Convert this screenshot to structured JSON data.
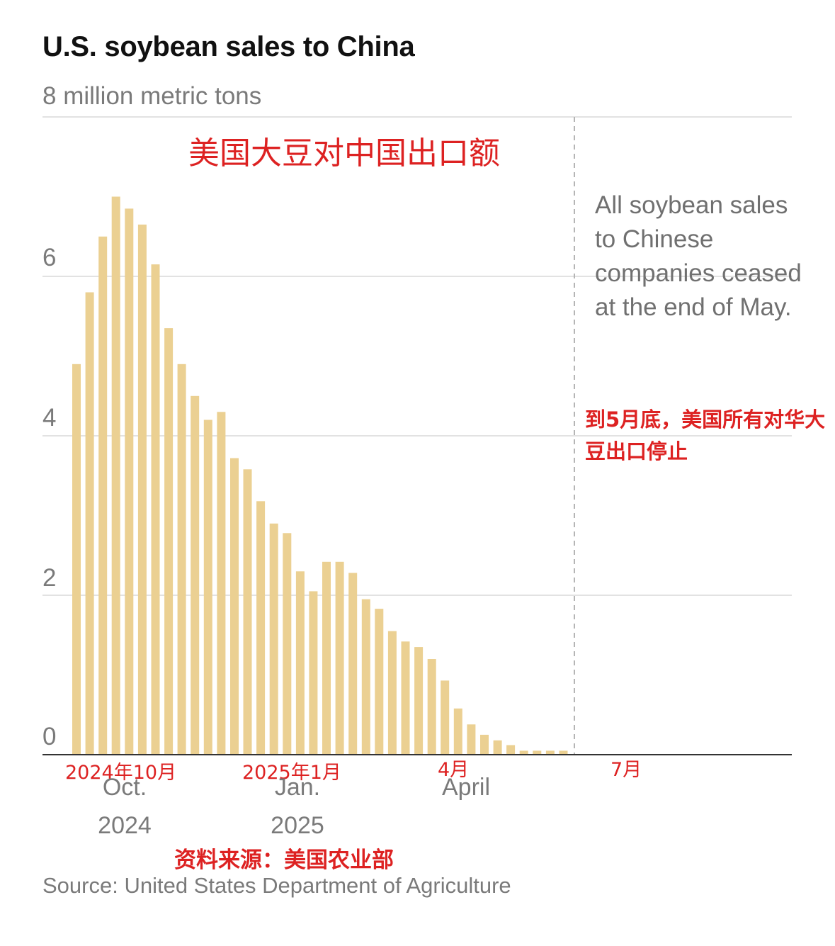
{
  "chart_data": {
    "type": "bar",
    "title": "U.S. soybean sales to China",
    "ylabel": "8 million metric tons",
    "annotation_zh_title": "美国大豆对中国出口额",
    "ylim": [
      0,
      8
    ],
    "yticks": [
      {
        "value": 6,
        "label": "6"
      },
      {
        "value": 4,
        "label": "4"
      },
      {
        "value": 2,
        "label": "2"
      },
      {
        "value": 0,
        "label": "0"
      }
    ],
    "x_ticks": [
      {
        "label": "Oct.",
        "sublabel": "2024",
        "zh": "2024年10月"
      },
      {
        "label": "Jan.",
        "sublabel": "2025",
        "zh": "2025年1月"
      },
      {
        "label": "April",
        "sublabel": "",
        "zh": "4月"
      },
      {
        "label": "",
        "sublabel": "",
        "zh": "7月"
      }
    ],
    "values": [
      4.9,
      5.8,
      6.5,
      7.0,
      6.85,
      6.65,
      6.15,
      5.35,
      4.9,
      4.5,
      4.2,
      4.3,
      3.72,
      3.58,
      3.18,
      2.9,
      2.78,
      2.3,
      2.05,
      2.42,
      2.42,
      2.28,
      1.95,
      1.83,
      1.55,
      1.42,
      1.35,
      1.2,
      0.93,
      0.58,
      0.38,
      0.25,
      0.18,
      0.12,
      0.05,
      0.05,
      0.05,
      0.05
    ],
    "cutoff_note": "All soybean sales to Chinese companies ceased at the end of May.",
    "cutoff_note_zh": "到5月底，美国所有对华大豆出口停止",
    "bar_color": "#ebd092",
    "grid": true
  },
  "footer": {
    "source_zh": "资料来源：美国农业部",
    "source": "Source: United States Department of Agriculture"
  }
}
